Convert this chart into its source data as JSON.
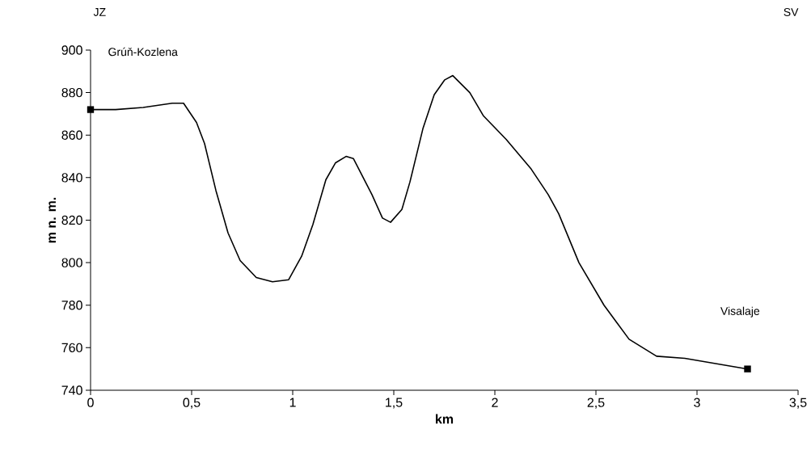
{
  "chart_data": {
    "type": "line",
    "xlabel": "km",
    "ylabel": "m n. m.",
    "annotations": [
      "JZ",
      "SV",
      "Grúň-Kozlena",
      "Visalaje"
    ],
    "series": [
      {
        "color": "#000000",
        "marker": "none",
        "line_style": "solid",
        "x": [
          0,
          0.124,
          0.26,
          0.404,
          0.46,
          0.524,
          0.564,
          0.62,
          0.68,
          0.74,
          0.82,
          0.9,
          0.98,
          1.044,
          1.1,
          1.164,
          1.212,
          1.264,
          1.3,
          1.392,
          1.444,
          1.484,
          1.54,
          1.58,
          1.644,
          1.7,
          1.752,
          1.792,
          1.876,
          1.944,
          2.056,
          2.18,
          2.264,
          2.316,
          2.416,
          2.54,
          2.664,
          2.8,
          2.94,
          3.25
        ],
        "values": [
          872,
          872,
          873,
          875,
          875,
          866,
          856,
          834,
          814,
          801,
          793,
          791,
          792,
          803,
          818,
          839,
          847,
          850,
          849,
          832,
          821,
          819,
          825,
          838,
          863,
          879,
          886,
          888,
          880,
          869,
          858,
          844,
          832,
          823,
          800,
          780,
          764,
          756,
          755,
          750
        ]
      },
      {
        "type": "scatter",
        "color": "#000000",
        "marker": "square",
        "x": [
          0,
          3.25
        ],
        "values": [
          872,
          750
        ]
      }
    ],
    "xlim": [
      0,
      3.5
    ],
    "ylim": [
      740,
      900
    ],
    "xticks": [
      0,
      {
        "value": 0.5,
        "label": "0,5"
      },
      1,
      {
        "value": 1.5,
        "label": "1,5"
      },
      2,
      {
        "value": 2.5,
        "label": "2,5"
      },
      3,
      {
        "value": 3.5,
        "label": "3,5"
      }
    ],
    "yticks": [
      740,
      760,
      780,
      800,
      820,
      840,
      860,
      880,
      900
    ],
    "grid": false
  }
}
